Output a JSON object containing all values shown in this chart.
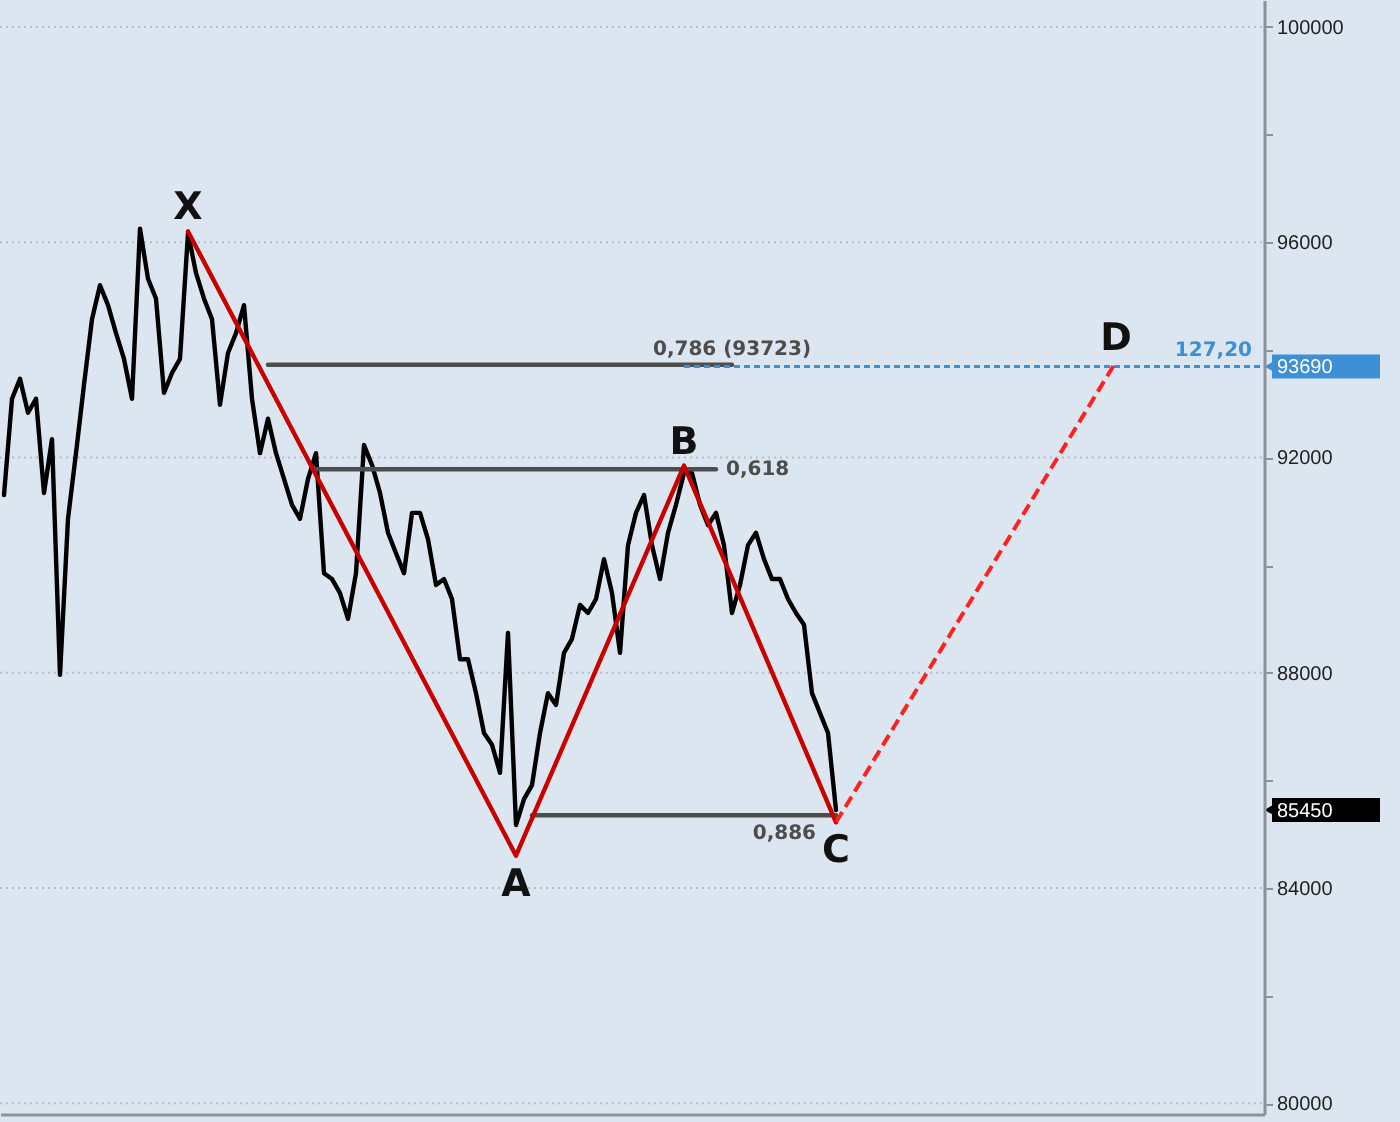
{
  "chart_data": {
    "type": "line",
    "categories": [
      null,
      null,
      null,
      null,
      null,
      null,
      null,
      null,
      null,
      null,
      null,
      null,
      null,
      null,
      null,
      null,
      null,
      null,
      null,
      null,
      null,
      null,
      null,
      null,
      null,
      null,
      null,
      null,
      null,
      null,
      null,
      null,
      null,
      null,
      null,
      null,
      null,
      null,
      null,
      null,
      null,
      null,
      null,
      null,
      null,
      null,
      null,
      null,
      null,
      null,
      null,
      null,
      null,
      null,
      null,
      null,
      null,
      null,
      null,
      null,
      null,
      null,
      null,
      null,
      null,
      null,
      null,
      null,
      null,
      null,
      null,
      null,
      null,
      null,
      null,
      null,
      null,
      null,
      null,
      null,
      null,
      null,
      null,
      null,
      null,
      null,
      null,
      null,
      null,
      null,
      null,
      null,
      null,
      null,
      null,
      null,
      null,
      null,
      null,
      null,
      null,
      null,
      null,
      null,
      null,
      null,
      null,
      null,
      null,
      null,
      null,
      null,
      null,
      null,
      null,
      null,
      null,
      null,
      null,
      null,
      null,
      null,
      null,
      null,
      null,
      null,
      null,
      null,
      null,
      null,
      null,
      null,
      null,
      null,
      null,
      null,
      null,
      null,
      null,
      null,
      null,
      null,
      null,
      null,
      null,
      null,
      null,
      null,
      null,
      null,
      null,
      null,
      null,
      null,
      null,
      null,
      null,
      null
    ],
    "ylim": [
      79800,
      100500
    ],
    "yticks": [
      80000,
      {
        "value": 82000,
        "label": null
      },
      84000,
      85450,
      {
        "value": 86000,
        "label": null
      },
      88000,
      {
        "value": 90000,
        "label": null
      },
      92000,
      93690,
      {
        "value": 94000,
        "label": null
      },
      96000,
      {
        "value": 98000,
        "label": null
      },
      100000
    ],
    "tick_labels": "y",
    "grid": "y",
    "series": [
      {
        "color": "#000000",
        "values": [
          91300,
          93090,
          93460,
          92830,
          93090,
          91340,
          92340,
          87960,
          90860,
          92080,
          93350,
          94570,
          95200,
          94830,
          94310,
          93830,
          93090,
          96250,
          95320,
          94950,
          93200,
          93570,
          93830,
          96170,
          95430,
          94950,
          94570,
          92980,
          93940,
          94310,
          94830,
          93090,
          92080,
          92720,
          92080,
          91600,
          91120,
          90860,
          91600,
          92080,
          89850,
          89740,
          89480,
          89000,
          89850,
          92230,
          91860,
          91340,
          90600,
          90220,
          89850,
          90970,
          90970,
          90480,
          89630,
          89740,
          89370,
          88250,
          88250,
          87620,
          86880,
          86660,
          86140,
          88740,
          85170,
          85650,
          85910,
          86880,
          87620,
          87400,
          88370,
          88630,
          89260,
          89110,
          89370,
          90110,
          89480,
          88370,
          90370,
          90970,
          91300,
          90370,
          89740,
          90600,
          91120,
          91710,
          91710,
          91120,
          90740,
          90970,
          90370,
          89110,
          89630,
          90370,
          90600,
          90110,
          89740,
          89740,
          89370,
          89110,
          88890,
          87620,
          87250,
          86880,
          85450,
          null,
          null,
          null,
          null,
          null,
          null,
          null,
          null,
          null,
          null,
          null,
          null,
          null,
          null,
          null,
          null,
          null,
          null,
          null,
          null,
          null,
          null,
          null,
          null,
          null,
          null,
          null,
          null,
          null,
          null,
          null,
          null,
          null,
          null,
          null,
          null,
          null,
          null,
          null,
          null,
          null,
          null,
          null,
          null,
          null,
          null,
          null,
          null,
          null,
          null,
          null,
          null,
          null
        ]
      },
      {
        "color": "#4d4d4d",
        "name": "0,786 (93723)",
        "values": [
          null,
          null,
          null,
          null,
          null,
          null,
          null,
          null,
          null,
          null,
          null,
          null,
          null,
          null,
          null,
          null,
          null,
          null,
          null,
          null,
          null,
          null,
          null,
          null,
          null,
          null,
          null,
          null,
          null,
          null,
          null,
          null,
          null,
          93723,
          null,
          null,
          null,
          null,
          null,
          null,
          null,
          null,
          null,
          null,
          null,
          null,
          null,
          null,
          null,
          null,
          null,
          null,
          null,
          null,
          null,
          null,
          null,
          null,
          null,
          null,
          null,
          null,
          null,
          null,
          null,
          null,
          null,
          null,
          null,
          null,
          null,
          null,
          null,
          null,
          null,
          null,
          null,
          null,
          null,
          null,
          null,
          null,
          null,
          null,
          null,
          null,
          null,
          null,
          null,
          null,
          null,
          93723,
          null,
          null,
          null,
          null,
          null,
          null,
          null,
          null,
          null,
          null,
          null,
          null,
          null,
          null,
          null,
          null,
          null,
          null,
          null,
          null,
          null,
          null,
          null,
          null,
          null,
          null,
          null,
          null,
          null,
          null,
          null,
          null,
          null,
          null,
          null,
          null,
          null,
          null,
          null,
          null,
          null,
          null,
          null,
          null,
          null,
          null,
          null,
          null,
          null,
          null,
          null,
          null,
          null,
          null,
          null,
          null,
          null,
          null,
          null,
          null,
          null,
          null,
          null,
          null,
          null,
          null
        ]
      },
      {
        "color": "#4d4d4d",
        "name": "0,618",
        "values": [
          null,
          null,
          null,
          null,
          null,
          null,
          null,
          null,
          null,
          null,
          null,
          null,
          null,
          null,
          null,
          null,
          null,
          null,
          null,
          null,
          null,
          null,
          null,
          null,
          null,
          null,
          null,
          null,
          null,
          null,
          null,
          null,
          null,
          null,
          null,
          null,
          null,
          null,
          null,
          91780,
          null,
          null,
          null,
          null,
          null,
          null,
          null,
          null,
          null,
          null,
          null,
          null,
          null,
          null,
          null,
          null,
          null,
          null,
          null,
          null,
          null,
          null,
          null,
          null,
          null,
          null,
          null,
          null,
          null,
          null,
          null,
          null,
          null,
          null,
          null,
          null,
          null,
          null,
          null,
          null,
          null,
          null,
          null,
          null,
          null,
          null,
          null,
          null,
          null,
          91780,
          null,
          null,
          null,
          null,
          null,
          null,
          null,
          null,
          null,
          null,
          null,
          null,
          null,
          null,
          null,
          null,
          null,
          null,
          null,
          null,
          null,
          null,
          null,
          null,
          null,
          null,
          null,
          null,
          null,
          null,
          null,
          null,
          null,
          null,
          null,
          null,
          null,
          null,
          null,
          null,
          null,
          null,
          null,
          null,
          null,
          null,
          null,
          null,
          null,
          null,
          null,
          null,
          null,
          null,
          null,
          null,
          null,
          null,
          null,
          null,
          null,
          null,
          null,
          null,
          null,
          null,
          null,
          null
        ]
      },
      {
        "color": "#4d4d4d",
        "name": "0,886",
        "values": [
          null,
          null,
          null,
          null,
          null,
          null,
          null,
          null,
          null,
          null,
          null,
          null,
          null,
          null,
          null,
          null,
          null,
          null,
          null,
          null,
          null,
          null,
          null,
          null,
          null,
          null,
          null,
          null,
          null,
          null,
          null,
          null,
          null,
          null,
          null,
          null,
          null,
          null,
          null,
          null,
          null,
          null,
          null,
          null,
          null,
          null,
          null,
          null,
          null,
          null,
          null,
          null,
          null,
          null,
          null,
          null,
          null,
          null,
          null,
          null,
          null,
          null,
          null,
          null,
          null,
          null,
          85350,
          null,
          null,
          null,
          null,
          null,
          null,
          null,
          null,
          null,
          null,
          null,
          null,
          null,
          null,
          null,
          null,
          null,
          null,
          null,
          null,
          null,
          null,
          null,
          null,
          null,
          null,
          null,
          null,
          null,
          null,
          null,
          null,
          null,
          null,
          null,
          null,
          null,
          85350,
          null,
          null,
          null,
          null,
          null,
          null,
          null,
          null,
          null,
          null,
          null,
          null,
          null,
          null,
          null,
          null,
          null,
          null,
          null,
          null,
          null,
          null,
          null,
          null,
          null,
          null,
          null,
          null,
          null,
          null,
          null,
          null,
          null,
          null,
          null,
          null,
          null,
          null,
          null,
          null,
          null,
          null,
          null,
          null,
          null,
          null,
          null,
          null,
          null,
          null,
          null,
          null,
          null
        ]
      },
      {
        "color": "#3d8fd6",
        "name": "127,20",
        "line_style": "dotted",
        "values": [
          null,
          null,
          null,
          null,
          null,
          null,
          null,
          null,
          null,
          null,
          null,
          null,
          null,
          null,
          null,
          null,
          null,
          null,
          null,
          null,
          null,
          null,
          null,
          null,
          null,
          null,
          null,
          null,
          null,
          null,
          null,
          null,
          null,
          null,
          null,
          null,
          null,
          null,
          null,
          null,
          null,
          null,
          null,
          null,
          null,
          null,
          null,
          null,
          null,
          null,
          null,
          null,
          null,
          null,
          null,
          null,
          null,
          null,
          null,
          null,
          null,
          null,
          null,
          null,
          null,
          null,
          null,
          null,
          null,
          null,
          null,
          null,
          null,
          null,
          null,
          null,
          null,
          null,
          null,
          null,
          null,
          null,
          null,
          null,
          null,
          93690,
          null,
          null,
          null,
          null,
          null,
          null,
          null,
          null,
          null,
          null,
          null,
          null,
          null,
          null,
          null,
          null,
          null,
          null,
          null,
          null,
          null,
          null,
          null,
          null,
          null,
          null,
          null,
          null,
          null,
          null,
          null,
          null,
          null,
          null,
          null,
          null,
          null,
          null,
          null,
          null,
          null,
          null,
          null,
          null,
          null,
          null,
          null,
          null,
          null,
          null,
          null,
          null,
          null,
          null,
          null,
          null,
          null,
          null,
          null,
          null,
          null,
          null,
          null,
          null,
          null,
          null,
          null,
          null,
          null,
          null,
          null,
          93690
        ]
      },
      {
        "color": "#c80000",
        "values": [
          null,
          null,
          null,
          null,
          null,
          null,
          null,
          null,
          null,
          null,
          null,
          null,
          null,
          null,
          null,
          null,
          null,
          null,
          null,
          null,
          null,
          null,
          null,
          96200,
          null,
          null,
          null,
          null,
          null,
          null,
          null,
          null,
          null,
          null,
          null,
          null,
          null,
          null,
          null,
          null,
          null,
          null,
          null,
          null,
          null,
          null,
          null,
          null,
          null,
          null,
          null,
          null,
          null,
          null,
          null,
          null,
          null,
          null,
          null,
          null,
          null,
          null,
          null,
          null,
          84600,
          null,
          null,
          null,
          null,
          null,
          null,
          null,
          null,
          null,
          null,
          null,
          null,
          null,
          null,
          null,
          null,
          null,
          null,
          null,
          null,
          91850,
          null,
          null,
          null,
          null,
          null,
          null,
          null,
          null,
          null,
          null,
          null,
          null,
          null,
          null,
          null,
          null,
          null,
          null,
          85220,
          null,
          null,
          null,
          null,
          null,
          null,
          null,
          null,
          null,
          null,
          null,
          null,
          null,
          null,
          null,
          null,
          null,
          null,
          null,
          null,
          null,
          null,
          null,
          null,
          null,
          null,
          null,
          null,
          null,
          null,
          null,
          null,
          null,
          null,
          null,
          null,
          null,
          null,
          null,
          null,
          null,
          null,
          null,
          null,
          null,
          null,
          null,
          null,
          null,
          null,
          null,
          null,
          null
        ],
        "value_labels": [
          null,
          null,
          null,
          null,
          null,
          null,
          null,
          null,
          null,
          null,
          null,
          null,
          null,
          null,
          null,
          null,
          null,
          null,
          null,
          null,
          null,
          null,
          null,
          "X",
          null,
          null,
          null,
          null,
          null,
          null,
          null,
          null,
          null,
          null,
          null,
          null,
          null,
          null,
          null,
          null,
          null,
          null,
          null,
          null,
          null,
          null,
          null,
          null,
          null,
          null,
          null,
          null,
          null,
          null,
          null,
          null,
          null,
          null,
          null,
          null,
          null,
          null,
          null,
          null,
          "A",
          null,
          null,
          null,
          null,
          null,
          null,
          null,
          null,
          null,
          null,
          null,
          null,
          null,
          null,
          null,
          null,
          null,
          null,
          null,
          null,
          "B",
          null,
          null,
          null,
          null,
          null,
          null,
          null,
          null,
          null,
          null,
          null,
          null,
          null,
          null,
          null,
          null,
          null,
          null,
          "C",
          null,
          null,
          null,
          null,
          null,
          null,
          null,
          null,
          null,
          null,
          null,
          null,
          null,
          null,
          null,
          null,
          null,
          null,
          null,
          null,
          null,
          null,
          null,
          null,
          null,
          null,
          null,
          null,
          null,
          null,
          null,
          null,
          null,
          null,
          null,
          null,
          null,
          null,
          null,
          null,
          null,
          null,
          null,
          null,
          null,
          null,
          null,
          null,
          null,
          null,
          null,
          null,
          null
        ]
      },
      {
        "color": "#ff2020",
        "line_style": "dashed",
        "values": [
          null,
          null,
          null,
          null,
          null,
          null,
          null,
          null,
          null,
          null,
          null,
          null,
          null,
          null,
          null,
          null,
          null,
          null,
          null,
          null,
          null,
          null,
          null,
          null,
          null,
          null,
          null,
          null,
          null,
          null,
          null,
          null,
          null,
          null,
          null,
          null,
          null,
          null,
          null,
          null,
          null,
          null,
          null,
          null,
          null,
          null,
          null,
          null,
          null,
          null,
          null,
          null,
          null,
          null,
          null,
          null,
          null,
          null,
          null,
          null,
          null,
          null,
          null,
          null,
          null,
          null,
          null,
          null,
          null,
          null,
          null,
          null,
          null,
          null,
          null,
          null,
          null,
          null,
          null,
          null,
          null,
          null,
          null,
          null,
          null,
          null,
          null,
          null,
          null,
          null,
          null,
          null,
          null,
          null,
          null,
          null,
          null,
          null,
          null,
          null,
          null,
          null,
          null,
          null,
          85220,
          null,
          null,
          null,
          null,
          null,
          null,
          null,
          null,
          null,
          null,
          null,
          null,
          null,
          null,
          null,
          null,
          null,
          null,
          null,
          null,
          null,
          null,
          null,
          null,
          null,
          null,
          null,
          null,
          null,
          null,
          null,
          null,
          null,
          null,
          93780,
          null,
          null,
          null,
          null,
          null,
          null,
          null,
          null,
          null,
          null,
          null,
          null,
          null,
          null,
          null,
          null,
          null,
          null
        ],
        "value_labels": [
          null,
          null,
          null,
          null,
          null,
          null,
          null,
          null,
          null,
          null,
          null,
          null,
          null,
          null,
          null,
          null,
          null,
          null,
          null,
          null,
          null,
          null,
          null,
          null,
          null,
          null,
          null,
          null,
          null,
          null,
          null,
          null,
          null,
          null,
          null,
          null,
          null,
          null,
          null,
          null,
          null,
          null,
          null,
          null,
          null,
          null,
          null,
          null,
          null,
          null,
          null,
          null,
          null,
          null,
          null,
          null,
          null,
          null,
          null,
          null,
          null,
          null,
          null,
          null,
          null,
          null,
          null,
          null,
          null,
          null,
          null,
          null,
          null,
          null,
          null,
          null,
          null,
          null,
          null,
          null,
          null,
          null,
          null,
          null,
          null,
          null,
          null,
          null,
          null,
          null,
          null,
          null,
          null,
          null,
          null,
          null,
          null,
          null,
          null,
          null,
          null,
          null,
          null,
          null,
          null,
          null,
          null,
          null,
          null,
          null,
          null,
          null,
          null,
          null,
          null,
          null,
          null,
          null,
          null,
          null,
          null,
          null,
          null,
          null,
          null,
          null,
          null,
          null,
          null,
          null,
          null,
          null,
          null,
          null,
          null,
          null,
          null,
          null,
          null,
          "D",
          null,
          null,
          null,
          null,
          null,
          null,
          null,
          null,
          null,
          null,
          null,
          null,
          null,
          null,
          null,
          null,
          null,
          null
        ]
      }
    ]
  }
}
